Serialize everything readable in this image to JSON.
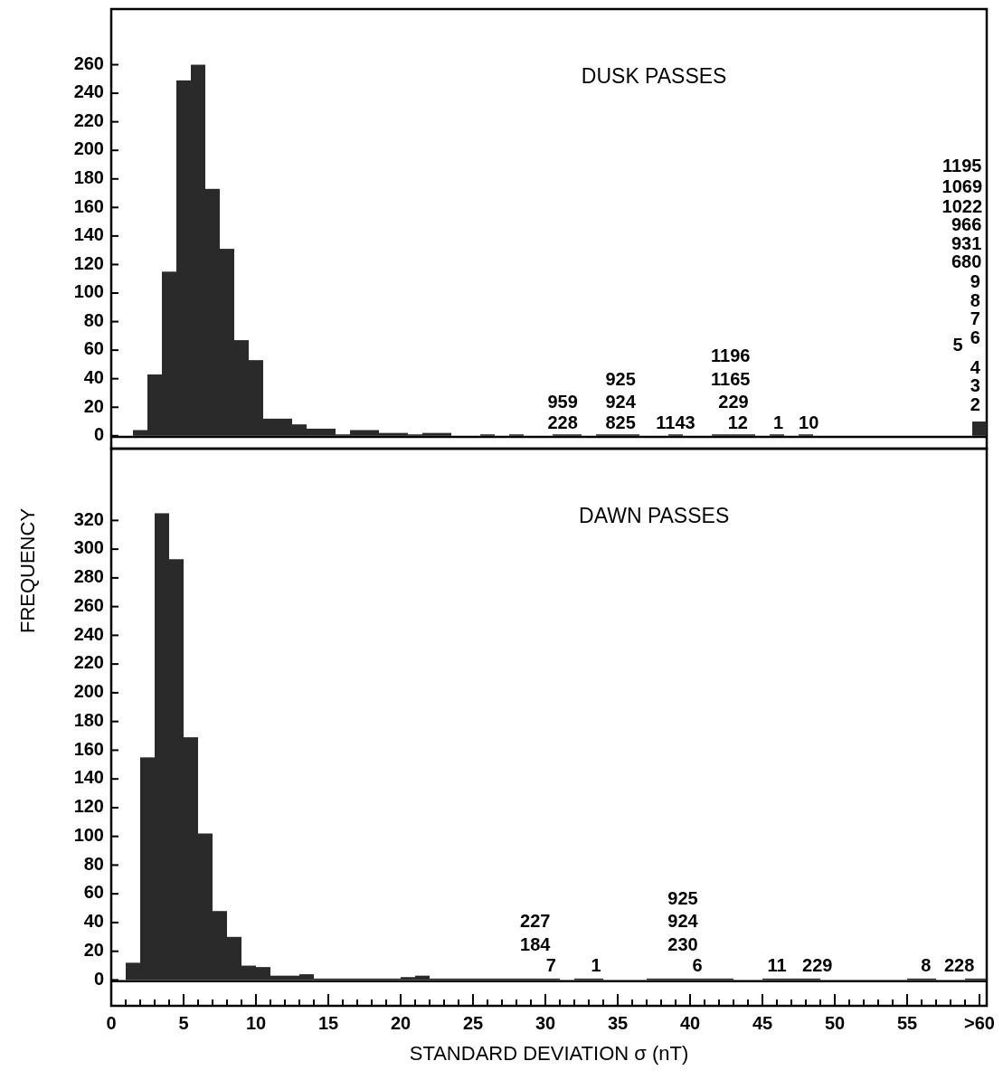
{
  "chart_data": [
    {
      "type": "histogram",
      "title": "DUSK PASSES",
      "color": "#2a2a2a",
      "bins": [
        1.5,
        2.5,
        3.5,
        4.5,
        5.5,
        6.5,
        7.5,
        8.5,
        9.5,
        10.5,
        11.5,
        12.5,
        13.5,
        14.5,
        15.5,
        16.5,
        17.5,
        18.5,
        19.5,
        20.5,
        21.5,
        22.5,
        23.5,
        25.5,
        26.5,
        27.5,
        28.5,
        30.5,
        31.5,
        32.5,
        33.5,
        34.5,
        35.5,
        36.5,
        38.5,
        39.5,
        41.5,
        42.5,
        43.5,
        44.5,
        45.5,
        46.5,
        47.5,
        48.5,
        59.5,
        60.5
      ],
      "values": [
        4,
        43,
        115,
        249,
        260,
        173,
        131,
        67,
        53,
        12,
        12,
        8,
        5,
        5,
        1,
        4,
        4,
        2,
        2,
        1,
        2,
        2,
        0,
        1,
        0,
        1,
        0,
        1,
        1,
        0,
        1,
        1,
        1,
        0,
        1,
        0,
        1,
        1,
        1,
        0,
        1,
        0,
        1,
        0,
        10
      ],
      "xlim": [
        0,
        60.5
      ],
      "ylim": [
        -9,
        299
      ],
      "yticks": [
        0,
        20,
        40,
        60,
        80,
        100,
        120,
        140,
        160,
        180,
        200,
        220,
        240,
        260
      ],
      "tick_labels": "y",
      "annotations": [
        "228",
        "959",
        "825",
        "924",
        "925",
        "1143",
        "12",
        "229",
        "1165",
        "1196",
        "1",
        "10",
        "2",
        "3",
        "4",
        "5",
        "6",
        "7",
        "8",
        "9",
        "680",
        "931",
        "966",
        "1022",
        "1069",
        "1195"
      ]
    },
    {
      "type": "histogram",
      "title": "DAWN PASSES",
      "color": "#2a2a2a",
      "xlabel": "STANDARD DEVIATION σ (nT)",
      "ylabel": "FREQUENCY",
      "bins": [
        1,
        2,
        3,
        4,
        5,
        6,
        7,
        8,
        9,
        10,
        11,
        12,
        13,
        14,
        15,
        16,
        17,
        18,
        19,
        20,
        21,
        22,
        23,
        24,
        25,
        26,
        27,
        28,
        29,
        30,
        31,
        32,
        33,
        34,
        37,
        38,
        39,
        40,
        41,
        42,
        43,
        45,
        46,
        47,
        48,
        49,
        55,
        56,
        57,
        59,
        60,
        60.5
      ],
      "values": [
        12,
        155,
        325,
        293,
        169,
        102,
        48,
        30,
        10,
        9,
        3,
        3,
        4,
        1,
        1,
        1,
        1,
        1,
        1,
        2,
        3,
        1,
        1,
        1,
        1,
        1,
        1,
        1,
        1,
        1,
        0,
        1,
        1,
        0,
        1,
        1,
        1,
        1,
        1,
        1,
        0,
        1,
        1,
        1,
        1,
        0,
        1,
        1,
        0,
        1,
        1
      ],
      "xlim": [
        0,
        60.5
      ],
      "ylim": [
        -18,
        370
      ],
      "yticks": [
        0,
        20,
        40,
        60,
        80,
        100,
        120,
        140,
        160,
        180,
        200,
        220,
        240,
        260,
        280,
        300,
        320
      ],
      "xticks": [
        0,
        {
          "value": 1,
          "label": null
        },
        {
          "value": 2,
          "label": null
        },
        {
          "value": 3,
          "label": null
        },
        {
          "value": 4,
          "label": null
        },
        5,
        {
          "value": 6,
          "label": null
        },
        {
          "value": 7,
          "label": null
        },
        {
          "value": 8,
          "label": null
        },
        {
          "value": 9,
          "label": null
        },
        10,
        {
          "value": 11,
          "label": null
        },
        {
          "value": 12,
          "label": null
        },
        {
          "value": 13,
          "label": null
        },
        {
          "value": 14,
          "label": null
        },
        15,
        {
          "value": 16,
          "label": null
        },
        {
          "value": 17,
          "label": null
        },
        {
          "value": 18,
          "label": null
        },
        {
          "value": 19,
          "label": null
        },
        20,
        {
          "value": 21,
          "label": null
        },
        {
          "value": 22,
          "label": null
        },
        {
          "value": 23,
          "label": null
        },
        {
          "value": 24,
          "label": null
        },
        25,
        {
          "value": 26,
          "label": null
        },
        {
          "value": 27,
          "label": null
        },
        {
          "value": 28,
          "label": null
        },
        {
          "value": 29,
          "label": null
        },
        30,
        {
          "value": 31,
          "label": null
        },
        {
          "value": 32,
          "label": null
        },
        {
          "value": 33,
          "label": null
        },
        {
          "value": 34,
          "label": null
        },
        35,
        {
          "value": 36,
          "label": null
        },
        {
          "value": 37,
          "label": null
        },
        {
          "value": 38,
          "label": null
        },
        {
          "value": 39,
          "label": null
        },
        40,
        {
          "value": 41,
          "label": null
        },
        {
          "value": 42,
          "label": null
        },
        {
          "value": 43,
          "label": null
        },
        {
          "value": 44,
          "label": null
        },
        45,
        {
          "value": 46,
          "label": null
        },
        {
          "value": 47,
          "label": null
        },
        {
          "value": 48,
          "label": null
        },
        {
          "value": 49,
          "label": null
        },
        50,
        {
          "value": 51,
          "label": null
        },
        {
          "value": 52,
          "label": null
        },
        {
          "value": 53,
          "label": null
        },
        {
          "value": 54,
          "label": null
        },
        55,
        {
          "value": 56,
          "label": null
        },
        {
          "value": 57,
          "label": null
        },
        {
          "value": 58,
          "label": null
        },
        {
          "value": 59,
          "label": null
        },
        {
          "value": 60,
          "label": ">60"
        }
      ],
      "annotations": [
        "7",
        "184",
        "227",
        "1",
        "6",
        "230",
        "924",
        "925",
        "11",
        "229",
        "8",
        "228"
      ]
    }
  ]
}
